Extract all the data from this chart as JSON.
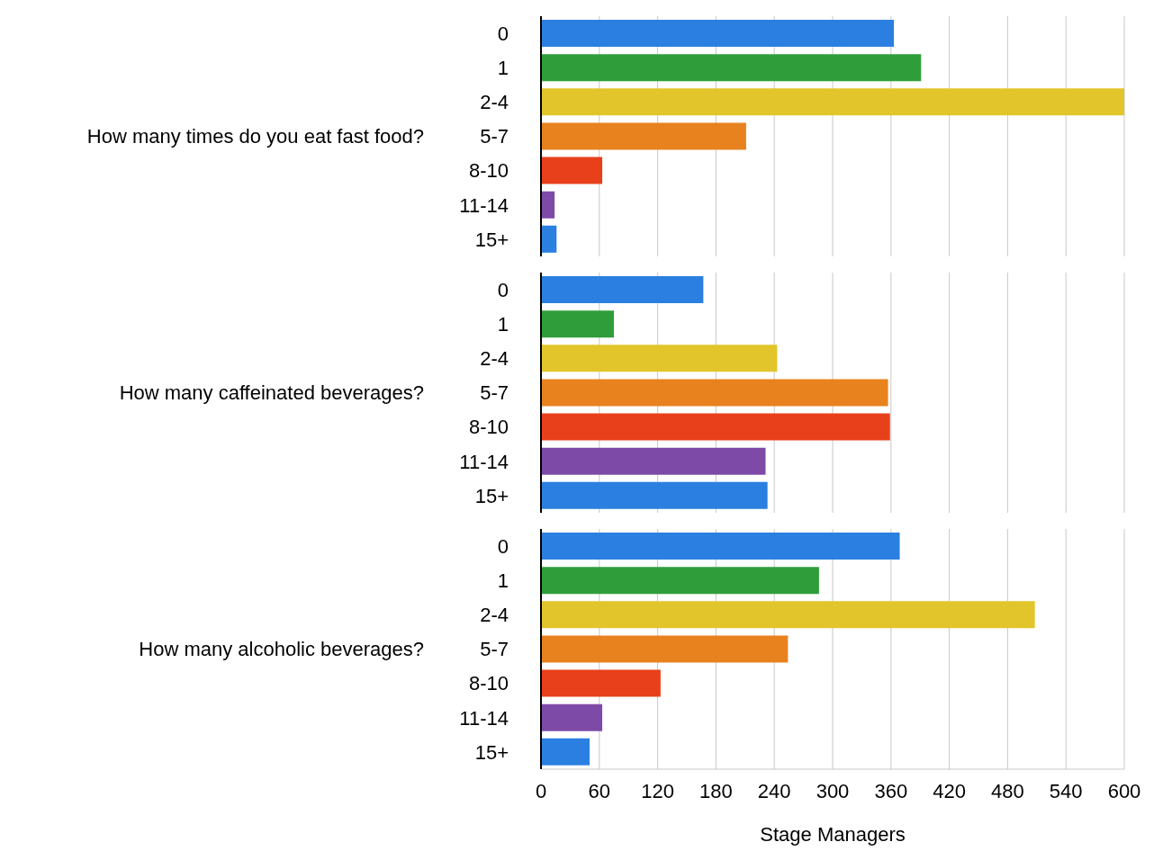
{
  "chart_data": [
    {
      "type": "bar",
      "orientation": "horizontal",
      "ylabel": "How many times do you eat fast food?",
      "categories": [
        "0",
        "1",
        "2-4",
        "5-7",
        "8-10",
        "11-14",
        "15+"
      ],
      "values": [
        363,
        391,
        600,
        211,
        63,
        14,
        16
      ],
      "colors": [
        "#2b7fe0",
        "#2f9e3a",
        "#e2c52a",
        "#e8821e",
        "#e8401a",
        "#7e4aa8",
        "#2b7fe0"
      ],
      "xlim": [
        0,
        600
      ],
      "xticks": [
        0,
        60,
        120,
        180,
        240,
        300,
        360,
        420,
        480,
        540,
        600
      ],
      "grid": "x",
      "tick_labels": "y"
    },
    {
      "type": "bar",
      "orientation": "horizontal",
      "ylabel": "How many caffeinated beverages?",
      "categories": [
        "0",
        "1",
        "2-4",
        "5-7",
        "8-10",
        "11-14",
        "15+"
      ],
      "values": [
        167,
        75,
        243,
        357,
        359,
        231,
        233
      ],
      "colors": [
        "#2b7fe0",
        "#2f9e3a",
        "#e2c52a",
        "#e8821e",
        "#e8401a",
        "#7e4aa8",
        "#2b7fe0"
      ],
      "xlim": [
        0,
        600
      ],
      "xticks": [
        0,
        60,
        120,
        180,
        240,
        300,
        360,
        420,
        480,
        540,
        600
      ],
      "grid": "x",
      "tick_labels": "y"
    },
    {
      "type": "bar",
      "orientation": "horizontal",
      "ylabel": "How many alcoholic beverages?",
      "xlabel": "Stage Managers",
      "categories": [
        "0",
        "1",
        "2-4",
        "5-7",
        "8-10",
        "11-14",
        "15+"
      ],
      "values": [
        369,
        286,
        508,
        254,
        123,
        63,
        50
      ],
      "colors": [
        "#2b7fe0",
        "#2f9e3a",
        "#e2c52a",
        "#e8821e",
        "#e8401a",
        "#7e4aa8",
        "#2b7fe0"
      ],
      "xlim": [
        0,
        600
      ],
      "xticks": [
        0,
        60,
        120,
        180,
        240,
        300,
        360,
        420,
        480,
        540,
        600
      ],
      "grid": "x"
    }
  ]
}
